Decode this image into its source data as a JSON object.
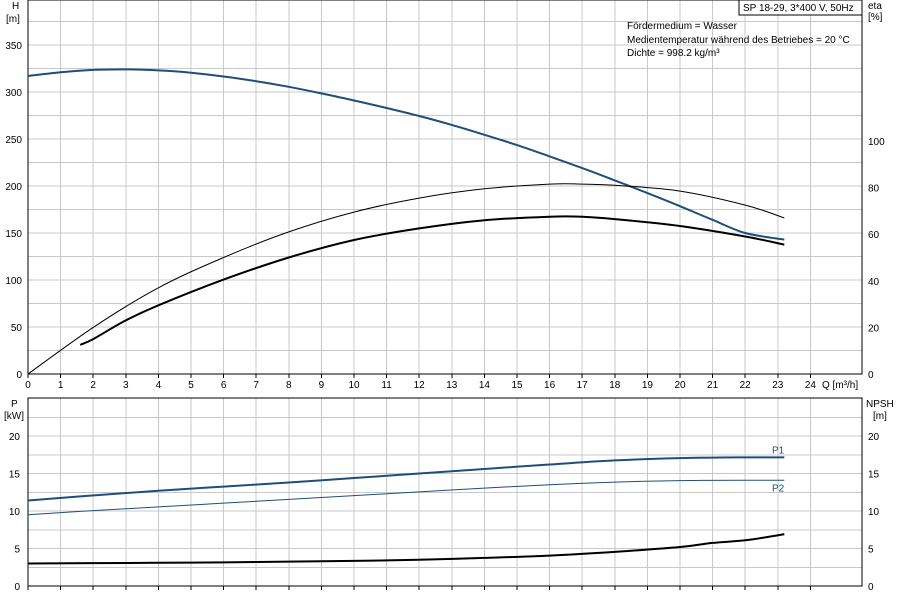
{
  "header": {
    "title": "SP 18-29, 3*400 V, 50Hz",
    "info_lines": [
      "Fördermedium = Wasser",
      "Medientemperatur während des Betriebes = 20 °C",
      "Dichte = 998.2 kg/m³"
    ]
  },
  "top_axes": {
    "left_name": "H",
    "left_unit": "[m]",
    "right_name": "eta",
    "right_unit": "[%]",
    "x_label": "Q [m³/h]"
  },
  "bottom_axes": {
    "left_name": "P",
    "left_unit": "[kW]",
    "right_name": "NPSH",
    "right_unit": "[m]"
  },
  "colors": {
    "head_curve": "#1f4e79",
    "power_curves": "#1f4e79",
    "efficiency_curves": "#000000",
    "npsh_curve": "#000000",
    "grid": "#c8c8c8"
  },
  "chart_data": [
    {
      "type": "line",
      "panel": "top",
      "xlabel": "Q [m³/h]",
      "ylabel": "H [m]",
      "y2label": "eta [%]",
      "xlim": [
        0,
        25
      ],
      "ylim": [
        0,
        380
      ],
      "y2lim": [
        0,
        160
      ],
      "grid": true,
      "xticks": [
        0,
        1,
        2,
        3,
        4,
        5,
        6,
        7,
        8,
        9,
        10,
        11,
        12,
        13,
        14,
        15,
        16,
        17,
        18,
        19,
        20,
        21,
        22,
        23,
        24
      ],
      "yticks": [
        0,
        50,
        100,
        150,
        200,
        250,
        300,
        350
      ],
      "y2ticks": [
        0,
        20,
        40,
        60,
        80,
        100
      ],
      "series": [
        {
          "axis": "left",
          "role": "head",
          "width": 2,
          "x": [
            0,
            1,
            2,
            3,
            4,
            5,
            6,
            7,
            8,
            9,
            10,
            11,
            12,
            13,
            14,
            15,
            16,
            17,
            18,
            19,
            20,
            21,
            22,
            23.2
          ],
          "y": [
            317,
            321,
            323.5,
            324,
            323,
            320.5,
            316.5,
            311.5,
            305.5,
            298.5,
            291,
            283,
            274.5,
            265,
            254.5,
            243.5,
            231.5,
            219,
            206,
            192.5,
            178.5,
            164,
            150,
            143
          ]
        },
        {
          "axis": "right",
          "role": "efficiency-upper",
          "width": 1,
          "x": [
            0,
            2,
            4,
            6,
            8,
            10,
            12,
            14,
            16,
            17,
            18,
            20,
            22,
            23.2
          ],
          "y": [
            0,
            20,
            37,
            50,
            61,
            69.5,
            75.5,
            79.5,
            81.5,
            81.5,
            81,
            78.5,
            72.5,
            67
          ]
        },
        {
          "axis": "right",
          "role": "efficiency-lower",
          "width": 2,
          "x": [
            1.6,
            2,
            3,
            4,
            6,
            8,
            10,
            12,
            14,
            16,
            17,
            18,
            20,
            22,
            23.2
          ],
          "y": [
            12.5,
            15,
            23,
            29.5,
            40.5,
            50,
            57.5,
            62.5,
            66,
            67.5,
            67.5,
            66.5,
            63.5,
            59,
            55.5
          ]
        }
      ]
    },
    {
      "type": "line",
      "panel": "bottom",
      "ylabel": "P [kW]",
      "y2label": "NPSH [m]",
      "xlim": [
        0,
        25
      ],
      "ylim": [
        0,
        23
      ],
      "y2lim": [
        0,
        23
      ],
      "grid": true,
      "yticks": [
        0,
        5,
        10,
        15,
        20
      ],
      "y2ticks": [
        0,
        5,
        10,
        15,
        20
      ],
      "series": [
        {
          "name": "P1",
          "axis": "left",
          "role": "power",
          "width": 2,
          "x": [
            0,
            1.6,
            4,
            6,
            8,
            10,
            12,
            14,
            16,
            18,
            20,
            22,
            23.2
          ],
          "y": [
            11.4,
            11.95,
            12.7,
            13.25,
            13.8,
            14.4,
            15,
            15.6,
            16.2,
            16.75,
            17.05,
            17.15,
            17.15
          ]
        },
        {
          "name": "P2",
          "axis": "left",
          "role": "power",
          "width": 1,
          "x": [
            0,
            1.6,
            4,
            6,
            8,
            10,
            12,
            14,
            16,
            18,
            20,
            22,
            23.2
          ],
          "y": [
            9.5,
            9.95,
            10.55,
            11.05,
            11.55,
            12.05,
            12.55,
            13.05,
            13.5,
            13.85,
            14.05,
            14.1,
            14.1
          ]
        },
        {
          "axis": "right",
          "role": "npsh",
          "width": 2,
          "x": [
            0,
            2,
            4,
            6,
            8,
            10,
            12,
            14,
            16,
            18,
            20,
            21,
            22,
            23.2
          ],
          "y": [
            3,
            3.05,
            3.1,
            3.15,
            3.25,
            3.35,
            3.5,
            3.75,
            4.05,
            4.55,
            5.2,
            5.75,
            6.1,
            6.9
          ]
        }
      ]
    }
  ]
}
